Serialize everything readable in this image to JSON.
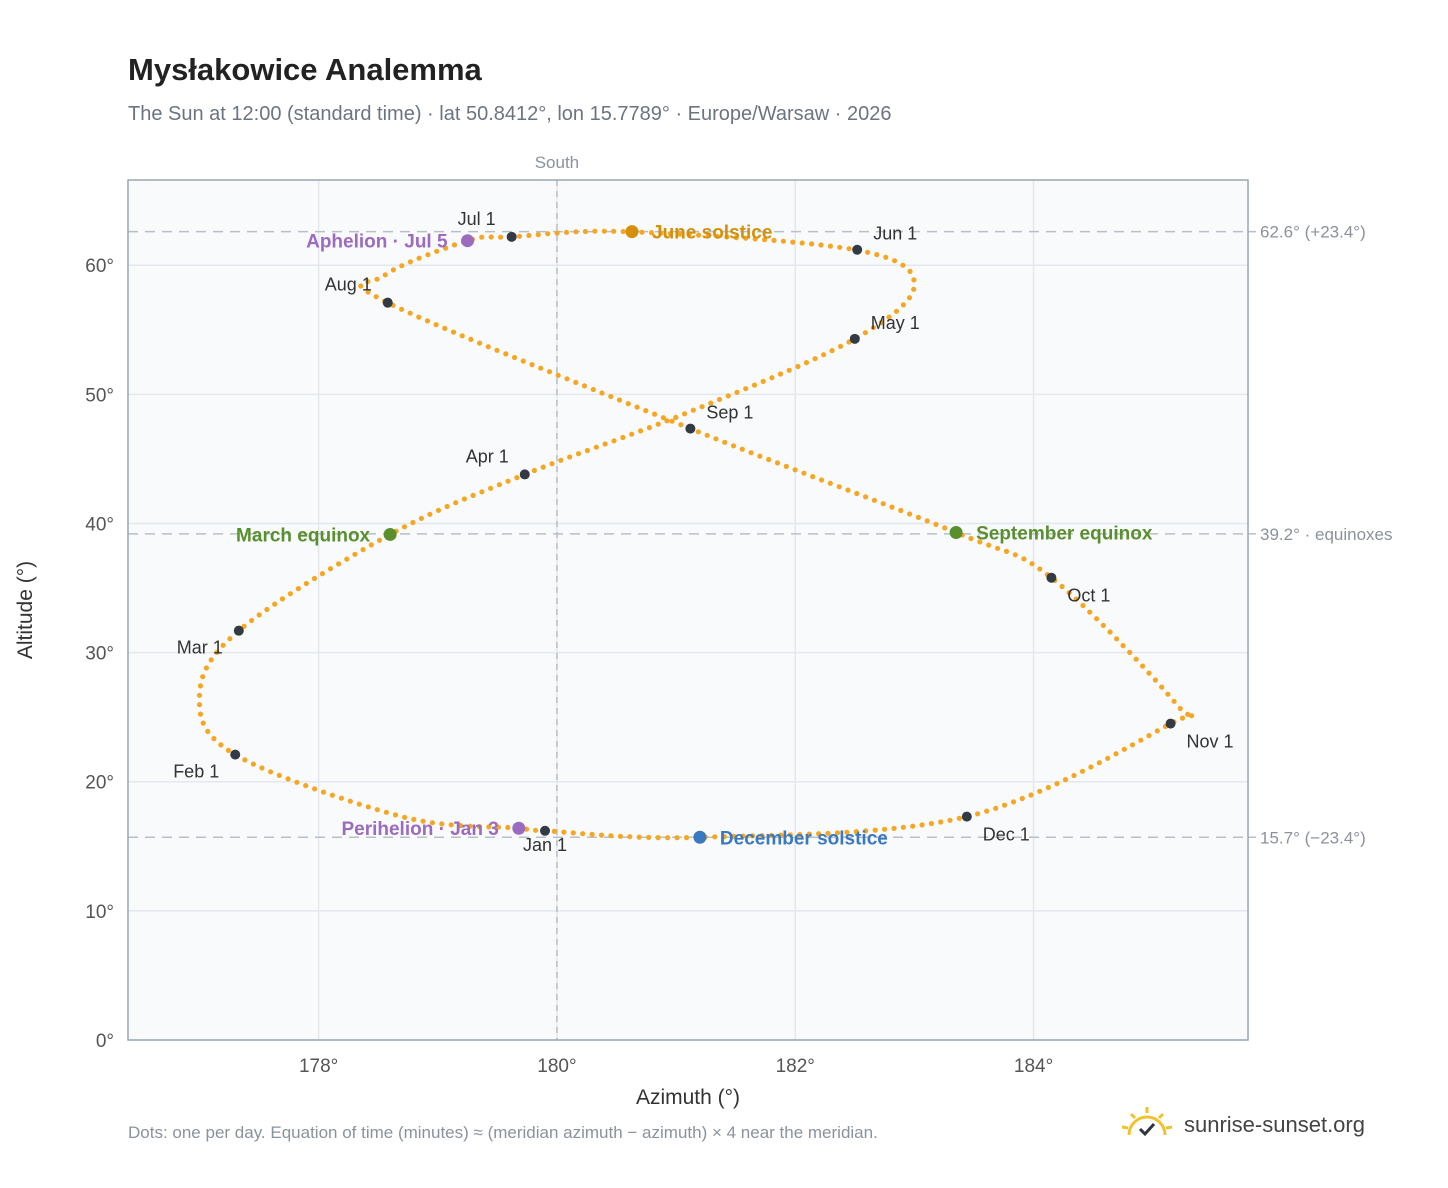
{
  "title": "Mysłakowice Analemma",
  "subtitle": "The Sun at 12:00 (standard time) · lat 50.8412°, lon 15.7789° · Europe/Warsaw · 2026",
  "footnote": "Dots: one per day. Equation of time (minutes) ≈ (meridian azimuth − azimuth) × 4 near the meridian.",
  "brand": {
    "name": "sunrise-sunset.org",
    "logo_icon": "sun-check-icon"
  },
  "colors": {
    "curve": "#f5a623",
    "month_marker": "#333a44",
    "june_solstice": "#d4900b",
    "december_solstice": "#3a78c0",
    "equinox": "#5a8f2e",
    "apsis": "#9b6bbf",
    "guide_line": "#b7c0c8",
    "plot_bg": "#f8fafc"
  },
  "chart_data": {
    "type": "scatter",
    "title": "Mysłakowice Analemma",
    "xlabel": "Azimuth (°)",
    "ylabel": "Altitude (°)",
    "xlim": [
      176.4,
      185.8
    ],
    "ylim": [
      0,
      66.6
    ],
    "xticks": [
      178,
      180,
      182,
      184
    ],
    "yticks": [
      0,
      10,
      20,
      30,
      40,
      50,
      60
    ],
    "tick_suffix": "°",
    "grid": true,
    "meridian": {
      "x": 180,
      "label": "South"
    },
    "reference_lines": [
      {
        "y": 62.6,
        "label": "62.6° (+23.4°)"
      },
      {
        "y": 39.2,
        "label": "39.2° · equinoxes"
      },
      {
        "y": 15.7,
        "label": "15.7° (−23.4°)"
      }
    ],
    "anchors": [
      [
        179.9,
        16.2
      ],
      [
        179.68,
        16.4
      ],
      [
        178.7,
        17.3
      ],
      [
        177.3,
        22.1
      ],
      [
        177.0,
        26.6
      ],
      [
        177.33,
        31.7
      ],
      [
        178.6,
        39.15
      ],
      [
        179.73,
        43.8
      ],
      [
        181.1,
        48.6
      ],
      [
        182.5,
        54.3
      ],
      [
        183.0,
        58.5
      ],
      [
        182.5,
        61.2
      ],
      [
        180.6,
        62.6
      ],
      [
        179.62,
        62.2
      ],
      [
        179.25,
        61.9
      ],
      [
        178.55,
        59.2
      ],
      [
        178.58,
        57.1
      ],
      [
        181.12,
        47.35
      ],
      [
        183.35,
        39.3
      ],
      [
        184.15,
        35.8
      ],
      [
        185.2,
        26.0
      ],
      [
        185.15,
        24.5
      ],
      [
        183.44,
        17.3
      ],
      [
        181.2,
        15.7
      ],
      [
        179.9,
        16.2
      ]
    ],
    "months": [
      {
        "label": "Jan 1",
        "x": 179.9,
        "y": 16.2,
        "lpos": "below"
      },
      {
        "label": "Feb 1",
        "x": 177.3,
        "y": 22.1,
        "lpos": "below-left"
      },
      {
        "label": "Mar 1",
        "x": 177.33,
        "y": 31.7,
        "lpos": "below-left"
      },
      {
        "label": "Apr 1",
        "x": 179.73,
        "y": 43.8,
        "lpos": "above-left"
      },
      {
        "label": "May 1",
        "x": 182.5,
        "y": 54.3,
        "lpos": "above-right"
      },
      {
        "label": "Jun 1",
        "x": 182.52,
        "y": 61.2,
        "lpos": "above-right"
      },
      {
        "label": "Jul 1",
        "x": 179.62,
        "y": 62.2,
        "lpos": "above-left"
      },
      {
        "label": "Aug 1",
        "x": 178.58,
        "y": 57.1,
        "lpos": "above-left"
      },
      {
        "label": "Sep 1",
        "x": 181.12,
        "y": 47.35,
        "lpos": "above-right"
      },
      {
        "label": "Oct 1",
        "x": 184.15,
        "y": 35.8,
        "lpos": "below-right"
      },
      {
        "label": "Nov 1",
        "x": 185.15,
        "y": 24.5,
        "lpos": "below-right"
      },
      {
        "label": "Dec 1",
        "x": 183.44,
        "y": 17.3,
        "lpos": "below-right"
      }
    ],
    "events": [
      {
        "label": "June solstice",
        "x": 180.63,
        "y": 62.6,
        "color": "#d4900b",
        "side": "right"
      },
      {
        "label": "December solstice",
        "x": 181.2,
        "y": 15.7,
        "color": "#3a78c0",
        "side": "right"
      },
      {
        "label": "March equinox",
        "x": 178.6,
        "y": 39.15,
        "color": "#5a8f2e",
        "side": "left"
      },
      {
        "label": "September equinox",
        "x": 183.35,
        "y": 39.3,
        "color": "#5a8f2e",
        "side": "right"
      },
      {
        "label": "Aphelion · Jul 5",
        "x": 179.25,
        "y": 61.9,
        "color": "#9b6bbf",
        "side": "left"
      },
      {
        "label": "Perihelion · Jan 3",
        "x": 179.68,
        "y": 16.4,
        "color": "#9b6bbf",
        "side": "left"
      }
    ]
  }
}
